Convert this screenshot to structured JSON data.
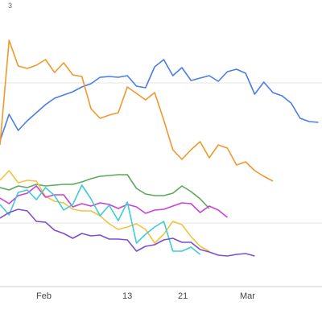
{
  "chart_data": {
    "type": "line",
    "x_tick_labels": [
      "Feb",
      "13",
      "21",
      "Mar"
    ],
    "corner_label": "3",
    "grid": "horizontal",
    "legend": "none",
    "series": [
      {
        "color": "#4a7de6",
        "values": [
          175,
          142,
          162,
          150,
          140,
          130,
          122,
          118,
          114,
          108,
          104,
          96,
          95,
          96,
          94,
          107,
          109,
          83,
          74,
          94,
          84,
          100,
          97,
          94,
          101,
          89,
          86,
          91,
          117,
          102,
          115,
          119,
          128,
          147,
          151,
          152
        ]
      },
      {
        "color": "#f0982e",
        "values": [
          180,
          50,
          82,
          85,
          81,
          74,
          90,
          78,
          93,
          95,
          135,
          147,
          143,
          140,
          108,
          116,
          124,
          115,
          149,
          186,
          198,
          186,
          176,
          196,
          180,
          184,
          205,
          201,
          212,
          219,
          225
        ]
      },
      {
        "color": "#5ba95b",
        "values": [
          233,
          236,
          231,
          233,
          229,
          231,
          230,
          229,
          229,
          226,
          222,
          219,
          218,
          217,
          217,
          234,
          241,
          243,
          243,
          240,
          231,
          238,
          247,
          259
        ]
      },
      {
        "color": "#f2c33e",
        "values": [
          224,
          212,
          227,
          224,
          225,
          244,
          250,
          252,
          260,
          262,
          262,
          268,
          278,
          285,
          282,
          278,
          285,
          302,
          291,
          275,
          279,
          294,
          306,
          312
        ]
      },
      {
        "color": "#c842d8",
        "values": [
          246,
          253,
          243,
          240,
          231,
          245,
          242,
          242,
          257,
          253,
          256,
          252,
          254,
          259,
          254,
          257,
          265,
          261,
          260,
          256,
          252,
          253,
          264,
          256,
          261,
          270
        ]
      },
      {
        "color": "#3fcbd9",
        "values": [
          254,
          267,
          239,
          236,
          248,
          233,
          243,
          261,
          254,
          230,
          247,
          268,
          255,
          274,
          251,
          302,
          291,
          282,
          275,
          312,
          312,
          307,
          316
        ]
      },
      {
        "color": "#7b4fd1",
        "values": [
          271,
          264,
          260,
          262,
          275,
          276,
          286,
          290,
          296,
          290,
          293,
          292,
          297,
          297,
          298,
          312,
          306,
          304,
          298,
          296,
          301,
          301,
          310,
          313,
          317,
          318,
          316,
          315,
          318
        ]
      }
    ]
  }
}
